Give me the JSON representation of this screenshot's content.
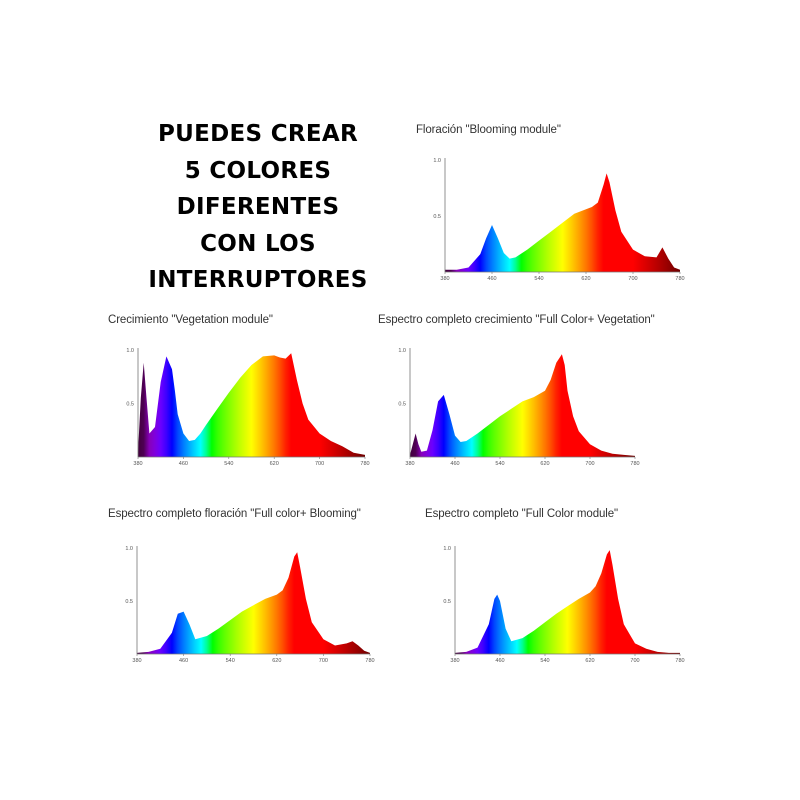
{
  "headline": {
    "lines": [
      "PUEDES CREAR",
      "5 COLORES",
      "DIFERENTES",
      "CON LOS",
      "INTERRUPTORES"
    ]
  },
  "chart_data": [
    {
      "type": "area",
      "title": "Floración \"Blooming module\"",
      "x_ticks": [
        "380",
        "460",
        "540",
        "620",
        "700",
        "780"
      ],
      "y_ticks": [
        "1.0",
        "0.5"
      ],
      "xlim": [
        380,
        780
      ],
      "ylim": [
        0,
        1.0
      ],
      "series": [
        {
          "x": [
            380,
            400,
            420,
            440,
            450,
            460,
            470,
            480,
            490,
            500,
            520,
            540,
            560,
            580,
            600,
            620,
            630,
            640,
            650,
            655,
            660,
            670,
            680,
            700,
            720,
            740,
            750,
            760,
            770,
            780
          ],
          "values": [
            0.02,
            0.02,
            0.04,
            0.16,
            0.3,
            0.42,
            0.3,
            0.17,
            0.12,
            0.13,
            0.2,
            0.28,
            0.36,
            0.44,
            0.52,
            0.56,
            0.58,
            0.62,
            0.78,
            0.88,
            0.8,
            0.55,
            0.36,
            0.2,
            0.14,
            0.13,
            0.22,
            0.12,
            0.04,
            0.02
          ]
        }
      ]
    },
    {
      "type": "area",
      "title": "Crecimiento \"Vegetation module\"",
      "x_ticks": [
        "380",
        "460",
        "540",
        "620",
        "700",
        "780"
      ],
      "y_ticks": [
        "1.0",
        "0.5"
      ],
      "xlim": [
        380,
        780
      ],
      "ylim": [
        0,
        1.0
      ],
      "series": [
        {
          "x": [
            380,
            385,
            390,
            395,
            400,
            410,
            420,
            430,
            440,
            445,
            450,
            460,
            470,
            480,
            490,
            500,
            520,
            540,
            560,
            580,
            600,
            620,
            630,
            640,
            650,
            660,
            670,
            680,
            700,
            720,
            740,
            760,
            780
          ],
          "values": [
            0.05,
            0.55,
            0.88,
            0.55,
            0.22,
            0.28,
            0.7,
            0.94,
            0.82,
            0.62,
            0.4,
            0.22,
            0.15,
            0.16,
            0.22,
            0.3,
            0.45,
            0.6,
            0.74,
            0.86,
            0.94,
            0.95,
            0.93,
            0.92,
            0.97,
            0.72,
            0.5,
            0.35,
            0.22,
            0.15,
            0.1,
            0.04,
            0.02
          ]
        }
      ]
    },
    {
      "type": "area",
      "title": "Espectro completo crecimiento \"Full Color+ Vegetation\"",
      "x_ticks": [
        "380",
        "460",
        "540",
        "620",
        "700",
        "780"
      ],
      "y_ticks": [
        "1.0",
        "0.5"
      ],
      "xlim": [
        380,
        780
      ],
      "ylim": [
        0,
        1.0
      ],
      "series": [
        {
          "x": [
            380,
            385,
            390,
            395,
            400,
            410,
            420,
            430,
            440,
            450,
            460,
            470,
            480,
            500,
            520,
            540,
            560,
            580,
            600,
            620,
            630,
            640,
            650,
            655,
            660,
            670,
            680,
            700,
            720,
            740,
            760,
            780
          ],
          "values": [
            0.02,
            0.12,
            0.22,
            0.12,
            0.05,
            0.06,
            0.25,
            0.52,
            0.58,
            0.4,
            0.2,
            0.14,
            0.15,
            0.22,
            0.3,
            0.38,
            0.45,
            0.52,
            0.56,
            0.62,
            0.72,
            0.88,
            0.96,
            0.86,
            0.62,
            0.38,
            0.24,
            0.12,
            0.06,
            0.03,
            0.02,
            0.01
          ]
        }
      ]
    },
    {
      "type": "area",
      "title": "Espectro completo floración \"Full color+ Blooming\"",
      "x_ticks": [
        "380",
        "460",
        "540",
        "620",
        "700",
        "780"
      ],
      "y_ticks": [
        "1.0",
        "0.5"
      ],
      "xlim": [
        380,
        780
      ],
      "ylim": [
        0,
        1.0
      ],
      "series": [
        {
          "x": [
            380,
            400,
            420,
            440,
            450,
            460,
            470,
            480,
            500,
            520,
            540,
            560,
            580,
            600,
            620,
            630,
            640,
            650,
            655,
            660,
            670,
            680,
            700,
            720,
            740,
            750,
            760,
            770,
            780
          ],
          "values": [
            0.01,
            0.02,
            0.05,
            0.2,
            0.38,
            0.4,
            0.28,
            0.14,
            0.17,
            0.24,
            0.32,
            0.4,
            0.46,
            0.52,
            0.56,
            0.6,
            0.72,
            0.92,
            0.96,
            0.82,
            0.52,
            0.3,
            0.14,
            0.08,
            0.1,
            0.12,
            0.08,
            0.03,
            0.01
          ]
        }
      ]
    },
    {
      "type": "area",
      "title": "Espectro completo \"Full Color module\"",
      "x_ticks": [
        "380",
        "460",
        "540",
        "620",
        "700",
        "780"
      ],
      "y_ticks": [
        "1.0",
        "0.5"
      ],
      "xlim": [
        380,
        780
      ],
      "ylim": [
        0,
        1.0
      ],
      "series": [
        {
          "x": [
            380,
            400,
            420,
            440,
            450,
            455,
            460,
            470,
            480,
            500,
            520,
            540,
            560,
            580,
            600,
            620,
            630,
            640,
            650,
            655,
            660,
            670,
            680,
            700,
            720,
            740,
            760,
            780
          ],
          "values": [
            0.01,
            0.02,
            0.06,
            0.28,
            0.52,
            0.56,
            0.5,
            0.24,
            0.12,
            0.15,
            0.22,
            0.3,
            0.38,
            0.45,
            0.52,
            0.58,
            0.64,
            0.76,
            0.94,
            0.98,
            0.84,
            0.52,
            0.28,
            0.1,
            0.05,
            0.02,
            0.01,
            0.01
          ]
        }
      ]
    }
  ]
}
